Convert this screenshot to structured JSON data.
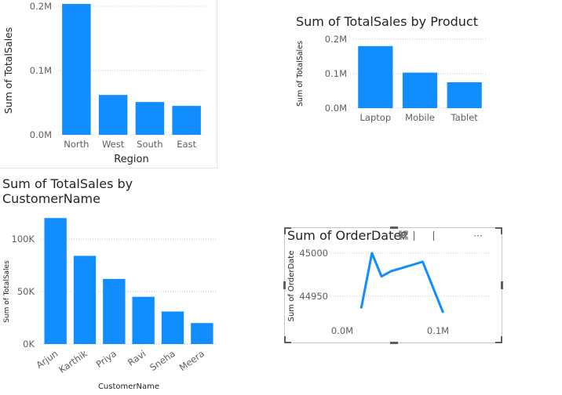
{
  "colors": {
    "bar": "#118dff",
    "line": "#118dff",
    "axis_text": "#605e5c",
    "title_text": "#252423",
    "grid": "#c8c6c4"
  },
  "chart_data": [
    {
      "id": "region",
      "type": "bar",
      "title": "",
      "categories": [
        "North",
        "West",
        "South",
        "East"
      ],
      "values": [
        205000,
        62000,
        51000,
        45000
      ],
      "xlabel": "Region",
      "ylabel": "Sum of TotalSales",
      "ylim": [
        0,
        200000
      ],
      "yticks": [
        0,
        100000,
        200000
      ],
      "ytick_labels": [
        "0.0M",
        "0.1M",
        "0.2M"
      ],
      "grid": true
    },
    {
      "id": "product",
      "type": "bar",
      "title": "Sum of TotalSales by Product",
      "categories": [
        "Laptop",
        "Mobile",
        "Tablet"
      ],
      "values": [
        180000,
        103000,
        75000
      ],
      "xlabel": "",
      "ylabel": "Sum of TotalSales",
      "ylim": [
        0,
        200000
      ],
      "yticks": [
        0,
        100000,
        200000
      ],
      "ytick_labels": [
        "0.0M",
        "0.1M",
        "0.2M"
      ],
      "grid": true
    },
    {
      "id": "customer",
      "type": "bar",
      "title": "Sum of TotalSales by CustomerName",
      "categories": [
        "Arjun",
        "Karthik",
        "Priya",
        "Ravi",
        "Sneha",
        "Meera"
      ],
      "values": [
        120000,
        84000,
        62000,
        45000,
        31000,
        20000
      ],
      "xlabel": "CustomerName",
      "ylabel": "Sum of TotalSales",
      "ylim": [
        0,
        100000
      ],
      "yticks": [
        0,
        50000,
        100000
      ],
      "ytick_labels": [
        "0K",
        "50K",
        "100K"
      ],
      "grid": true
    },
    {
      "id": "orderdate",
      "type": "line",
      "title": "Sum of OrderDate",
      "x": [
        20000,
        31000,
        41000,
        51000,
        84000,
        105000
      ],
      "y": [
        44937,
        45000,
        44973,
        44979,
        44990,
        44932
      ],
      "xlabel": "",
      "ylabel": "Sum of OrderDate",
      "xlim": [
        0,
        100000
      ],
      "xticks": [
        0,
        100000
      ],
      "xtick_labels": [
        "0.0M",
        "0.1M"
      ],
      "ylim": [
        44950,
        45000
      ],
      "yticks": [
        44950,
        45000
      ],
      "ytick_labels": [
        "44950",
        "45000"
      ],
      "grid": true
    }
  ],
  "visual_header": {
    "icons": [
      "pin-icon",
      "alert-icon",
      "filter-icon",
      "focus-mode-icon",
      "more-options-icon"
    ],
    "more_label": "···"
  }
}
